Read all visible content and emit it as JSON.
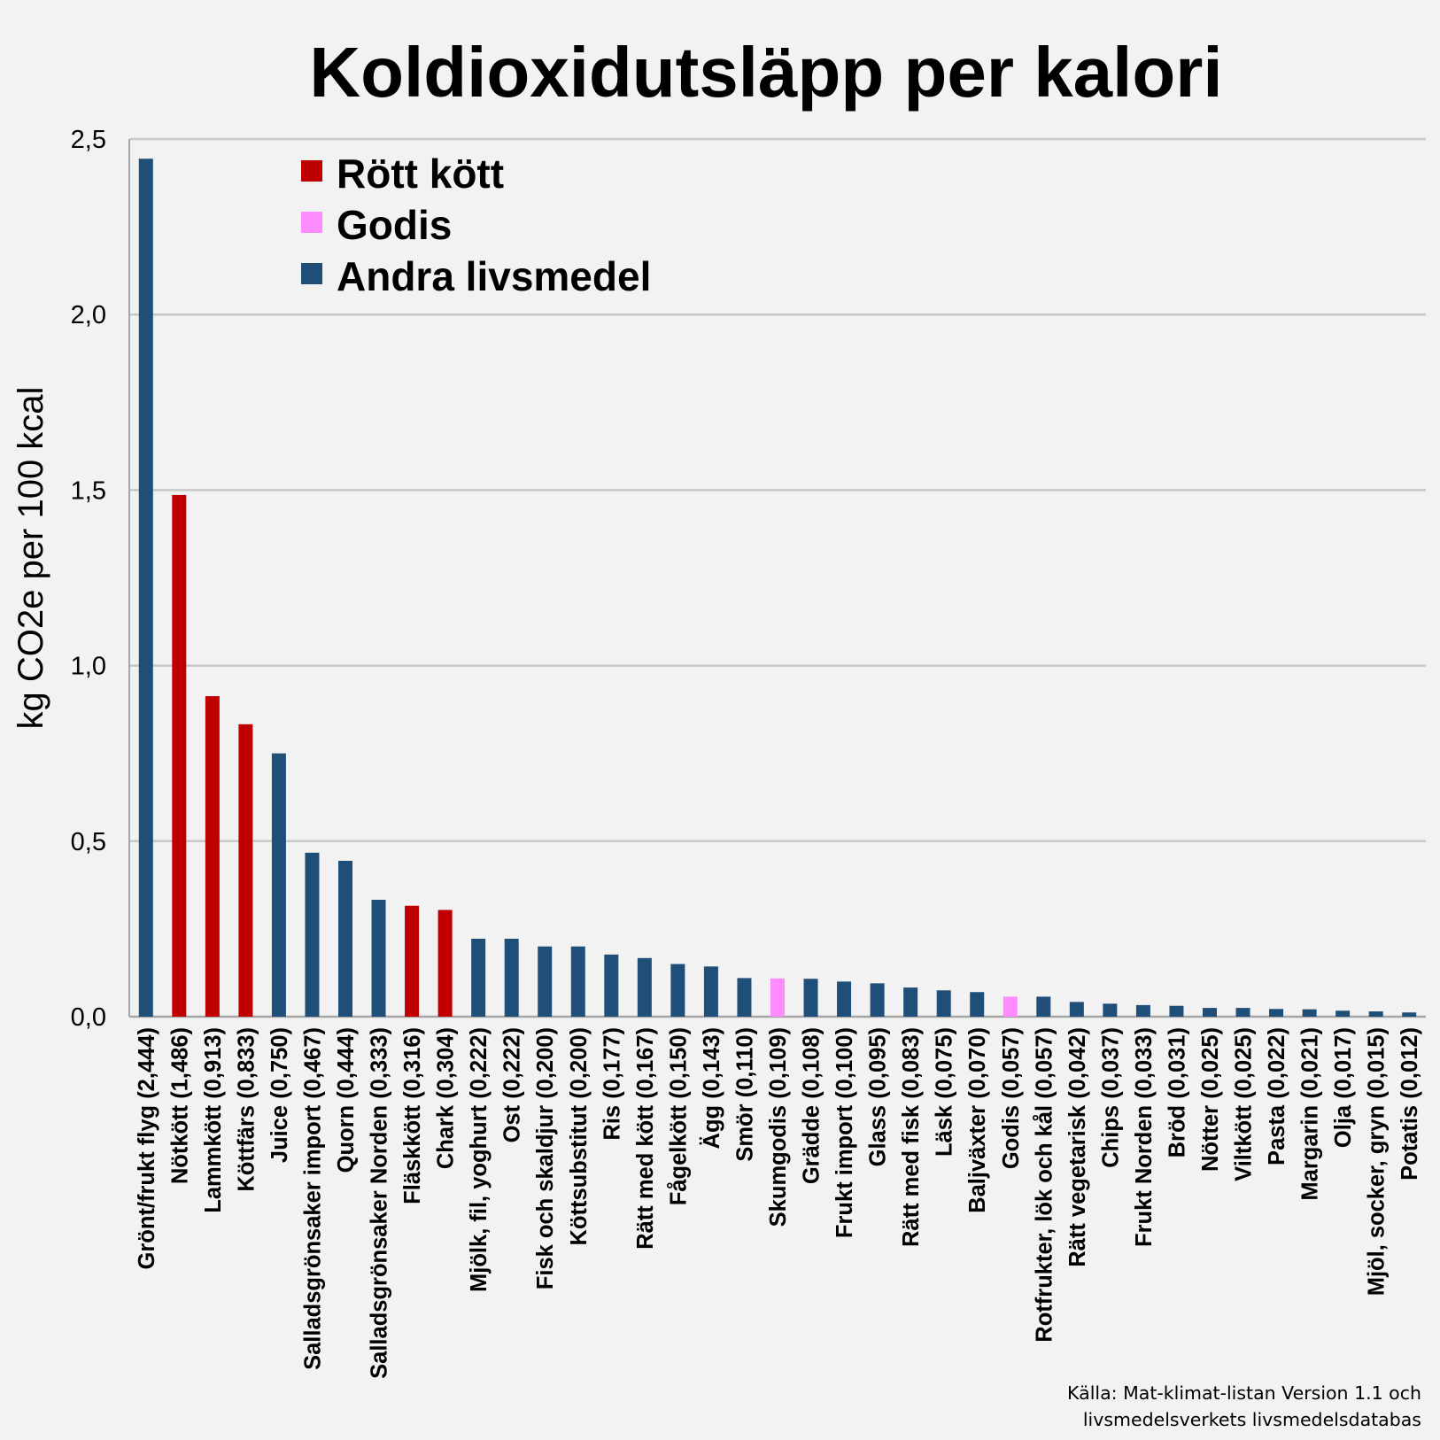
{
  "chart_data": {
    "type": "bar",
    "title": "Koldioxidutsläpp per kalori",
    "ylabel": "kg CO2e per 100 kcal",
    "xlabel": "",
    "ylim": [
      0,
      2.5
    ],
    "yticks": [
      "0,0",
      "0,5",
      "1,0",
      "1,5",
      "2,0",
      "2,5"
    ],
    "grid": true,
    "legend_position": "top-left",
    "legend": [
      {
        "key": "rott",
        "label": "Rött kött",
        "color": "#c00000"
      },
      {
        "key": "godis",
        "label": "Godis",
        "color": "#ff8cff"
      },
      {
        "key": "andra",
        "label": "Andra livsmedel",
        "color": "#1f4e79"
      }
    ],
    "categories": [
      {
        "name": "Grönt/frukt flyg",
        "label": "(2,444)",
        "value": 2.444,
        "group": "andra"
      },
      {
        "name": "Nötkött",
        "label": "(1,486)",
        "value": 1.486,
        "group": "rott"
      },
      {
        "name": "Lammkött",
        "label": "(0,913)",
        "value": 0.913,
        "group": "rott"
      },
      {
        "name": "Köttfärs",
        "label": "(0,833)",
        "value": 0.833,
        "group": "rott"
      },
      {
        "name": "Juice",
        "label": "(0,750)",
        "value": 0.75,
        "group": "andra"
      },
      {
        "name": "Salladsgrönsaker import",
        "label": "(0,467)",
        "value": 0.467,
        "group": "andra"
      },
      {
        "name": "Quorn",
        "label": "(0,444)",
        "value": 0.444,
        "group": "andra"
      },
      {
        "name": "Salladsgrönsaker Norden",
        "label": "(0,333)",
        "value": 0.333,
        "group": "andra"
      },
      {
        "name": "Fläskkött",
        "label": "(0,316)",
        "value": 0.316,
        "group": "rott"
      },
      {
        "name": "Chark",
        "label": "(0,304)",
        "value": 0.304,
        "group": "rott"
      },
      {
        "name": "Mjölk, fil, yoghurt",
        "label": "(0,222)",
        "value": 0.222,
        "group": "andra"
      },
      {
        "name": "Ost",
        "label": "(0,222)",
        "value": 0.222,
        "group": "andra"
      },
      {
        "name": "Fisk och skaldjur",
        "label": "(0,200)",
        "value": 0.2,
        "group": "andra"
      },
      {
        "name": "Köttsubstitut",
        "label": "(0,200)",
        "value": 0.2,
        "group": "andra"
      },
      {
        "name": "Ris",
        "label": "(0,177)",
        "value": 0.177,
        "group": "andra"
      },
      {
        "name": "Rätt med kött",
        "label": "(0,167)",
        "value": 0.167,
        "group": "andra"
      },
      {
        "name": "Fågelkött",
        "label": "(0,150)",
        "value": 0.15,
        "group": "andra"
      },
      {
        "name": "Ägg",
        "label": "(0,143)",
        "value": 0.143,
        "group": "andra"
      },
      {
        "name": "Smör",
        "label": "(0,110)",
        "value": 0.11,
        "group": "andra"
      },
      {
        "name": "Skumgodis",
        "label": "(0,109)",
        "value": 0.109,
        "group": "godis"
      },
      {
        "name": "Grädde",
        "label": "(0,108)",
        "value": 0.108,
        "group": "andra"
      },
      {
        "name": "Frukt import",
        "label": "(0,100)",
        "value": 0.1,
        "group": "andra"
      },
      {
        "name": "Glass",
        "label": "(0,095)",
        "value": 0.095,
        "group": "andra"
      },
      {
        "name": "Rätt med fisk",
        "label": "(0,083)",
        "value": 0.083,
        "group": "andra"
      },
      {
        "name": "Läsk",
        "label": "(0,075)",
        "value": 0.075,
        "group": "andra"
      },
      {
        "name": "Baljväxter",
        "label": "(0,070)",
        "value": 0.07,
        "group": "andra"
      },
      {
        "name": "Godis",
        "label": "(0,057)",
        "value": 0.057,
        "group": "godis"
      },
      {
        "name": "Rotfrukter, lök och kål",
        "label": "(0,057)",
        "value": 0.057,
        "group": "andra"
      },
      {
        "name": "Rätt vegetarisk",
        "label": "(0,042)",
        "value": 0.042,
        "group": "andra"
      },
      {
        "name": "Chips",
        "label": "(0,037)",
        "value": 0.037,
        "group": "andra"
      },
      {
        "name": "Frukt Norden",
        "label": "(0,033)",
        "value": 0.033,
        "group": "andra"
      },
      {
        "name": "Bröd",
        "label": "(0,031)",
        "value": 0.031,
        "group": "andra"
      },
      {
        "name": "Nötter",
        "label": "(0,025)",
        "value": 0.025,
        "group": "andra"
      },
      {
        "name": "Viltkött",
        "label": "(0,025)",
        "value": 0.025,
        "group": "andra"
      },
      {
        "name": "Pasta",
        "label": "(0,022)",
        "value": 0.022,
        "group": "andra"
      },
      {
        "name": "Margarin",
        "label": "(0,021)",
        "value": 0.021,
        "group": "andra"
      },
      {
        "name": "Olja",
        "label": "(0,017)",
        "value": 0.017,
        "group": "andra"
      },
      {
        "name": "Mjöl, socker, gryn",
        "label": "(0,015)",
        "value": 0.015,
        "group": "andra"
      },
      {
        "name": "Potatis",
        "label": "(0,012)",
        "value": 0.012,
        "group": "andra"
      }
    ],
    "source": [
      "Källa: Mat-klimat-listan Version 1.1 och",
      "livsmedelsverkets livsmedelsdatabas"
    ]
  },
  "colors": {
    "background": "#f2f2f2",
    "grid": "#c8c8c8",
    "axis": "#a6a6a6"
  }
}
